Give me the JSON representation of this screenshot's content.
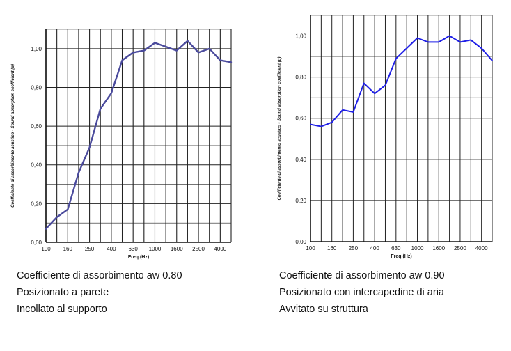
{
  "chart_data": [
    {
      "type": "line",
      "xlabel": "Freq.(Hz)",
      "ylabel": "Coefficiente di assorbimento acustico - Sound absorption coefficient (α)",
      "x": [
        "100",
        "125",
        "160",
        "200",
        "250",
        "315",
        "400",
        "500",
        "630",
        "800",
        "1000",
        "1250",
        "1600",
        "2000",
        "2500",
        "3150",
        "4000",
        "5000"
      ],
      "x_tick_labels": [
        "100",
        "160",
        "250",
        "400",
        "630",
        "1000",
        "1600",
        "2500",
        "4000"
      ],
      "y_tick_labels": [
        "0,00",
        "0,20",
        "0,40",
        "0,60",
        "0,80",
        "1,00"
      ],
      "ylim": [
        0,
        1.1
      ],
      "grid": true,
      "series": [
        {
          "values": [
            0.07,
            0.13,
            0.17,
            0.36,
            0.49,
            0.69,
            0.77,
            0.94,
            0.98,
            0.99,
            1.03,
            1.01,
            0.99,
            1.04,
            0.98,
            1.0,
            0.94,
            0.93
          ],
          "color": "#4a4a9c"
        }
      ]
    },
    {
      "type": "line",
      "xlabel": "Freq.(Hz)",
      "ylabel": "Coefficiente di assorbimento acustico - Sound absorption coefficient (α)",
      "x": [
        "100",
        "125",
        "160",
        "200",
        "250",
        "315",
        "400",
        "500",
        "630",
        "800",
        "1000",
        "1250",
        "1600",
        "2000",
        "2500",
        "3150",
        "4000",
        "5000"
      ],
      "x_tick_labels": [
        "100",
        "160",
        "250",
        "400",
        "630",
        "1000",
        "1600",
        "2500",
        "4000"
      ],
      "y_tick_labels": [
        "0,00",
        "0,20",
        "0,40",
        "0,60",
        "0,80",
        "1,00"
      ],
      "ylim": [
        0,
        1.1
      ],
      "grid": true,
      "series": [
        {
          "values": [
            0.57,
            0.56,
            0.58,
            0.64,
            0.63,
            0.77,
            0.72,
            0.76,
            0.89,
            0.94,
            0.99,
            0.97,
            0.97,
            1.0,
            0.97,
            0.98,
            0.94,
            0.88
          ],
          "color": "#1f1fe6"
        }
      ]
    }
  ],
  "captions": [
    {
      "line1": "Coefficiente di assorbimento aw 0.80",
      "line2": "Posizionato a parete",
      "line3": "Incollato al supporto"
    },
    {
      "line1": "Coefficiente di assorbimento aw 0.90",
      "line2": "Posizionato con intercapedine di aria",
      "line3": "Avvitato su struttura"
    }
  ]
}
